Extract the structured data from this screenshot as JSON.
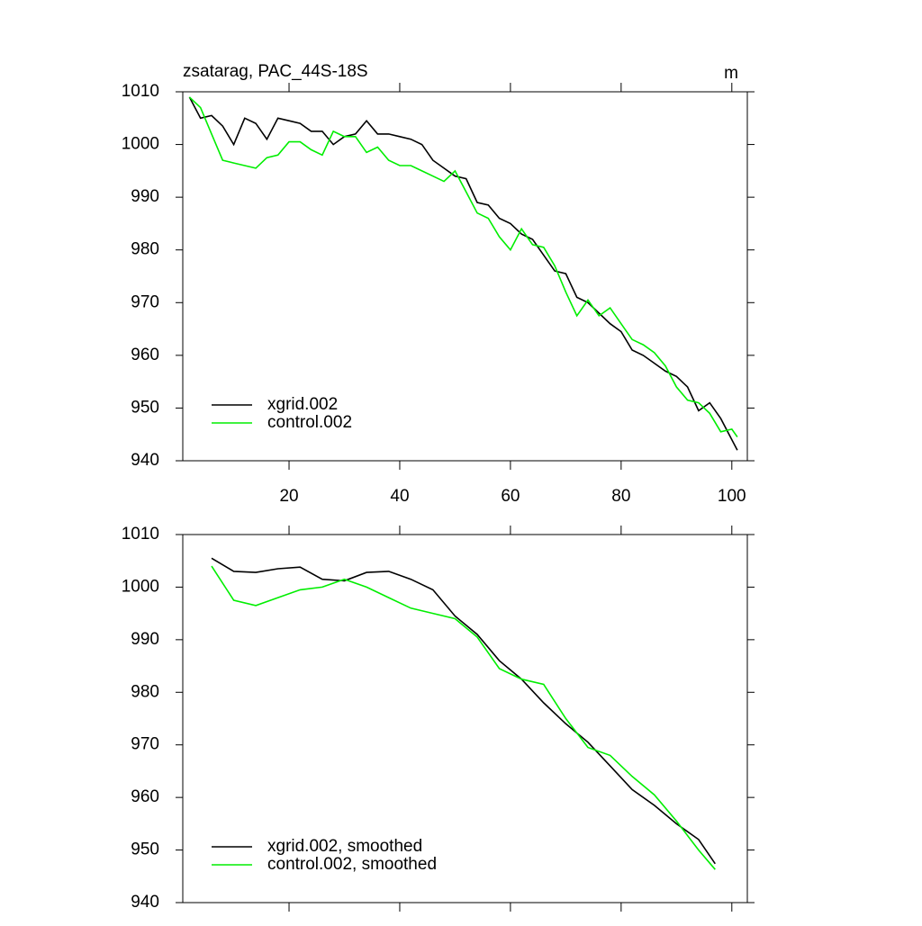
{
  "chart_data": [
    {
      "type": "line",
      "title": "zsatarag, PAC_44S-18S",
      "units_label": "m",
      "x": [
        2,
        4,
        6,
        8,
        10,
        12,
        14,
        16,
        18,
        20,
        22,
        24,
        26,
        28,
        30,
        32,
        34,
        36,
        38,
        40,
        42,
        44,
        46,
        48,
        50,
        52,
        54,
        56,
        58,
        60,
        62,
        64,
        66,
        68,
        70,
        72,
        74,
        76,
        78,
        80,
        82,
        84,
        86,
        88,
        90,
        92,
        94,
        96,
        98,
        100,
        101
      ],
      "series": [
        {
          "name": "xgrid.002",
          "color": "#000000",
          "values": [
            1009,
            1005,
            1005.5,
            1003.5,
            1000,
            1005,
            1004,
            1001,
            1005,
            1004.5,
            1004,
            1002.5,
            1002.5,
            1000,
            1001.5,
            1002,
            1004.5,
            1002,
            1002,
            1001.5,
            1001,
            1000,
            997,
            995.5,
            994,
            993.5,
            989,
            988.5,
            986,
            985,
            983,
            982,
            979,
            976,
            975.5,
            971,
            970,
            968,
            966,
            964.5,
            961,
            960,
            958.5,
            957,
            956,
            954,
            949.5,
            951,
            948,
            944,
            942
          ]
        },
        {
          "name": "control.002",
          "color": "#00ee00",
          "values": [
            1009,
            1007,
            1002,
            997,
            996.5,
            996,
            995.5,
            997.5,
            998,
            1000.5,
            1000.5,
            999,
            998,
            1002.5,
            1001.5,
            1001.5,
            998.5,
            999.5,
            997,
            996,
            996,
            995,
            994,
            993,
            995,
            991,
            987,
            986,
            982.5,
            980,
            984,
            981,
            980.5,
            977,
            972,
            967.5,
            970.5,
            967.5,
            969,
            966,
            963,
            962,
            960.5,
            958,
            954,
            951.5,
            951,
            949,
            945.5,
            946,
            944.5
          ]
        }
      ],
      "xlim": [
        0.8,
        102.8
      ],
      "ylim": [
        940,
        1010
      ],
      "xticks": [
        20,
        40,
        60,
        80,
        100
      ],
      "yticks": [
        940,
        950,
        960,
        970,
        980,
        990,
        1000,
        1010
      ],
      "xtick_labels": true,
      "legend": "lower left"
    },
    {
      "type": "line",
      "x": [
        6,
        10,
        14,
        18,
        22,
        26,
        30,
        34,
        38,
        42,
        46,
        50,
        54,
        58,
        62,
        66,
        70,
        74,
        78,
        82,
        86,
        90,
        94,
        97
      ],
      "series": [
        {
          "name": "xgrid.002, smoothed",
          "color": "#000000",
          "values": [
            1005.5,
            1003,
            1002.8,
            1003.5,
            1003.8,
            1001.5,
            1001.2,
            1002.8,
            1003,
            1001.5,
            999.5,
            994.5,
            991,
            986,
            982.5,
            978,
            974,
            970.5,
            966,
            961.5,
            958.5,
            955,
            952,
            947.4
          ]
        },
        {
          "name": "control.002, smoothed",
          "color": "#00ee00",
          "values": [
            1004,
            997.5,
            996.5,
            998,
            999.5,
            1000,
            1001.5,
            1000,
            998,
            996,
            995,
            994,
            990.5,
            984.5,
            982.5,
            981.5,
            975,
            969.5,
            968,
            964,
            960.5,
            955.5,
            950,
            946.3
          ]
        }
      ],
      "xlim": [
        0.8,
        102.8
      ],
      "ylim": [
        940,
        1010
      ],
      "xticks": [
        20,
        40,
        60,
        80,
        100
      ],
      "yticks": [
        940,
        950,
        960,
        970,
        980,
        990,
        1000,
        1010
      ],
      "xtick_labels": false,
      "legend": "lower left"
    }
  ]
}
